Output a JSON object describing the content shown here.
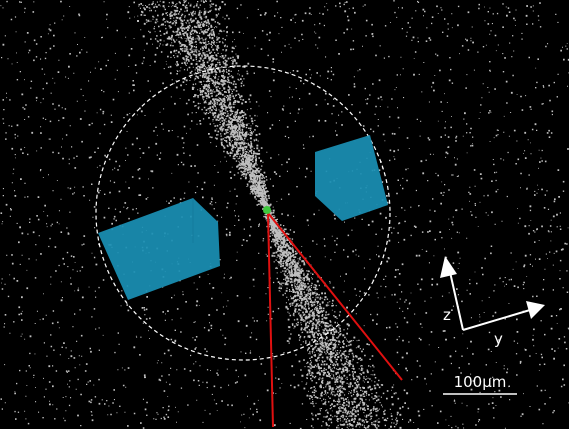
{
  "axes": {
    "z": "z",
    "y": "y"
  },
  "scale_bar": {
    "label": "100μm"
  }
}
